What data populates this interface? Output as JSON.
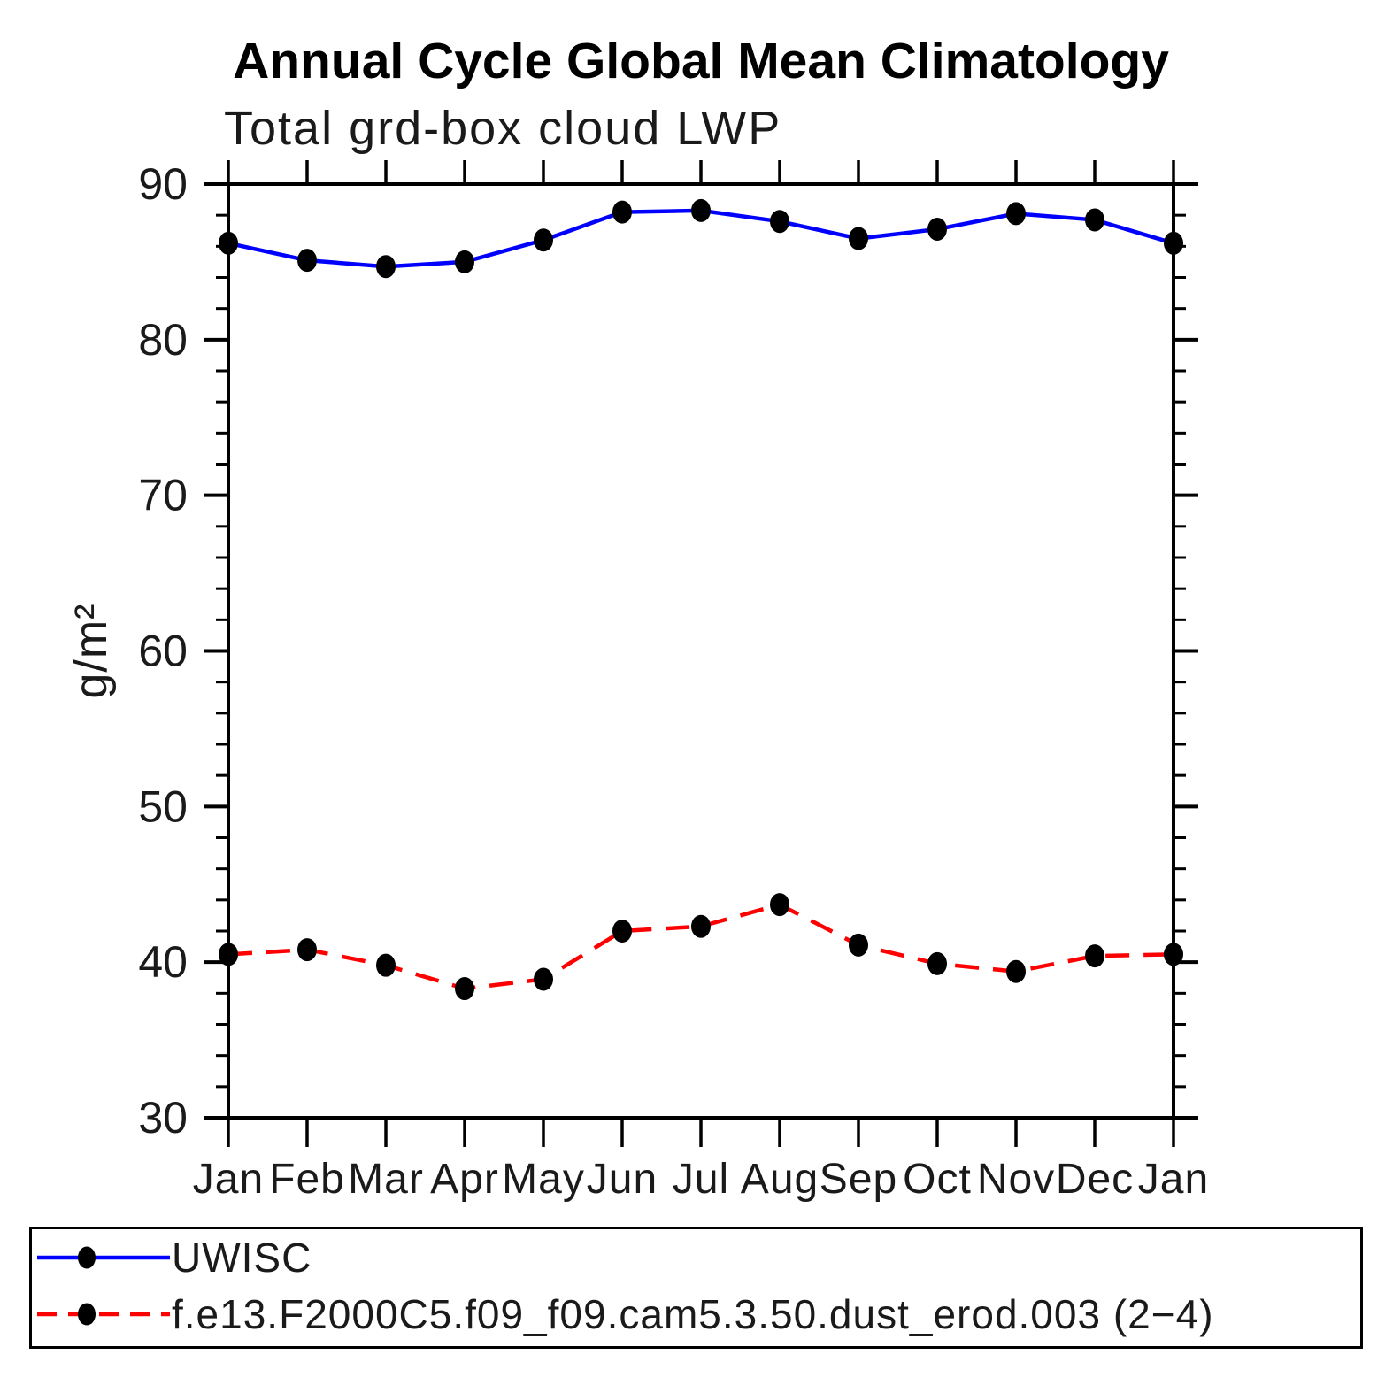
{
  "chart_data": {
    "type": "line",
    "title": "Annual Cycle Global Mean Climatology",
    "subtitle": "Total grd-box cloud LWP",
    "ylabel": "g/m²",
    "xlabel": "",
    "categories": [
      "Jan",
      "Feb",
      "Mar",
      "Apr",
      "May",
      "Jun",
      "Jul",
      "Aug",
      "Sep",
      "Oct",
      "Nov",
      "Dec",
      "Jan"
    ],
    "ylim": [
      30,
      90
    ],
    "ytick_major_step": 10,
    "ytick_minor_step": 2,
    "ytick_labels": [
      "30",
      "40",
      "50",
      "60",
      "70",
      "80",
      "90"
    ],
    "grid": false,
    "legend_position": "bottom-left-box",
    "series": [
      {
        "name": "UWISC",
        "color": "#0000ff",
        "line_style": "solid",
        "marker": "filled-black-dot",
        "values": [
          86.2,
          85.1,
          84.7,
          85.0,
          86.4,
          88.2,
          88.3,
          87.6,
          86.5,
          87.1,
          88.1,
          87.7,
          86.2
        ]
      },
      {
        "name": "f.e13.F2000C5.f09_f09.cam5.3.50.dust_erod.003 (2−4)",
        "color": "#ff0000",
        "line_style": "dashed",
        "marker": "filled-black-dot",
        "values": [
          40.5,
          40.8,
          39.8,
          38.3,
          38.9,
          42.0,
          42.3,
          43.7,
          41.1,
          39.9,
          39.4,
          40.4,
          40.5
        ]
      }
    ]
  },
  "colors": {
    "axis": "#000000",
    "text": "#1a1a1a",
    "marker": "#000000",
    "background": "#ffffff"
  }
}
